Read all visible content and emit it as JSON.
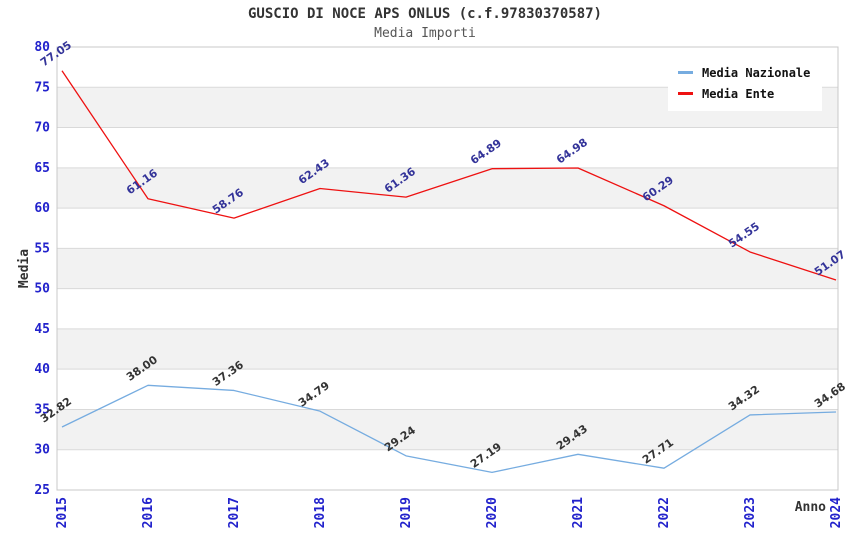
{
  "chart_data": {
    "type": "line",
    "title": "GUSCIO DI NOCE APS ONLUS (c.f.97830370587)",
    "subtitle": "Media Importi",
    "xlabel": "Anno",
    "ylabel": "Media",
    "categories": [
      "2015",
      "2016",
      "2017",
      "2018",
      "2019",
      "2020",
      "2021",
      "2022",
      "2023",
      "2024"
    ],
    "series": [
      {
        "name": "Media Nazionale",
        "color": "#76ace0",
        "label_color": "#333333",
        "values": [
          32.82,
          38.0,
          37.36,
          34.79,
          29.24,
          27.19,
          29.43,
          27.71,
          34.32,
          34.68
        ],
        "labels": [
          "32.82",
          "38.00",
          "37.36",
          "34.79",
          "29.24",
          "27.19",
          "29.43",
          "27.71",
          "34.32",
          "34.68"
        ]
      },
      {
        "name": "Media Ente",
        "color": "#ee1111",
        "label_color": "#333399",
        "values": [
          77.05,
          61.16,
          58.76,
          62.43,
          61.36,
          64.89,
          64.98,
          60.29,
          54.55,
          51.07
        ],
        "labels": [
          "77.05",
          "61.16",
          "58.76",
          "62.43",
          "61.36",
          "64.89",
          "64.98",
          "60.29",
          "54.55",
          "51.07"
        ]
      }
    ],
    "ylim": [
      25,
      80
    ],
    "ytick_step": 5,
    "ytick_labels": [
      "25",
      "30",
      "35",
      "40",
      "45",
      "50",
      "55",
      "60",
      "65",
      "70",
      "75",
      "80"
    ],
    "grid": "horizontal-bands",
    "legend_position": "top-right",
    "colors": {
      "tick_label": "#2222cc",
      "band": "#f2f2f2",
      "grid_line": "#d9d9d9",
      "plot_border": "#c8c8c8",
      "title": "#333333",
      "subtitle": "#555555"
    }
  }
}
